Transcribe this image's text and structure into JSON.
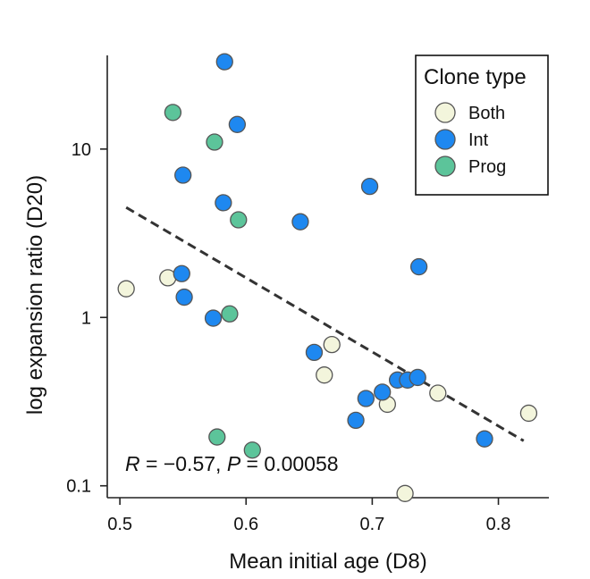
{
  "chart_data": {
    "type": "scatter",
    "title": "",
    "xlabel": "Mean initial age (D8)",
    "ylabel": "log expansion ratio (D20)",
    "xlim": [
      0.49,
      0.84
    ],
    "ylim": [
      0.085,
      36
    ],
    "yscale": "log",
    "x_ticks": [
      0.5,
      0.6,
      0.7,
      0.8
    ],
    "x_tick_labels": [
      "0.5",
      "0.6",
      "0.7",
      "0.8"
    ],
    "y_ticks": [
      0.1,
      1,
      10
    ],
    "y_tick_labels": [
      "0.1",
      "1",
      "10"
    ],
    "grid": false,
    "legend": {
      "title": "Clone type",
      "placement": "top-right"
    },
    "annotation": {
      "r_label": "R",
      "r_text": " = −0.57, ",
      "p_label": "P",
      "p_text": " = 0.00058"
    },
    "trendline": {
      "style": "dashed",
      "color": "#333333",
      "from": [
        0.505,
        4.5
      ],
      "to": [
        0.82,
        0.185
      ]
    },
    "series": [
      {
        "name": "Both",
        "color": "#f3f5dc",
        "points": [
          {
            "x": 0.505,
            "y": 1.48
          },
          {
            "x": 0.538,
            "y": 1.72
          },
          {
            "x": 0.662,
            "y": 0.455
          },
          {
            "x": 0.668,
            "y": 0.69
          },
          {
            "x": 0.712,
            "y": 0.305
          },
          {
            "x": 0.726,
            "y": 0.09
          },
          {
            "x": 0.752,
            "y": 0.355
          },
          {
            "x": 0.824,
            "y": 0.27
          }
        ]
      },
      {
        "name": "Int",
        "color": "#1e88f0",
        "points": [
          {
            "x": 0.583,
            "y": 33
          },
          {
            "x": 0.593,
            "y": 14
          },
          {
            "x": 0.55,
            "y": 7.0
          },
          {
            "x": 0.582,
            "y": 4.8
          },
          {
            "x": 0.643,
            "y": 3.7
          },
          {
            "x": 0.698,
            "y": 6.0
          },
          {
            "x": 0.737,
            "y": 2.0
          },
          {
            "x": 0.549,
            "y": 1.82
          },
          {
            "x": 0.551,
            "y": 1.32
          },
          {
            "x": 0.574,
            "y": 0.99
          },
          {
            "x": 0.654,
            "y": 0.62
          },
          {
            "x": 0.695,
            "y": 0.33
          },
          {
            "x": 0.687,
            "y": 0.245
          },
          {
            "x": 0.708,
            "y": 0.36
          },
          {
            "x": 0.72,
            "y": 0.425
          },
          {
            "x": 0.728,
            "y": 0.425
          },
          {
            "x": 0.736,
            "y": 0.44
          },
          {
            "x": 0.789,
            "y": 0.19
          }
        ]
      },
      {
        "name": "Prog",
        "color": "#5cc49a",
        "points": [
          {
            "x": 0.542,
            "y": 16.5
          },
          {
            "x": 0.575,
            "y": 11
          },
          {
            "x": 0.594,
            "y": 3.8
          },
          {
            "x": 0.587,
            "y": 1.05
          },
          {
            "x": 0.577,
            "y": 0.195
          },
          {
            "x": 0.605,
            "y": 0.163
          }
        ]
      }
    ]
  }
}
